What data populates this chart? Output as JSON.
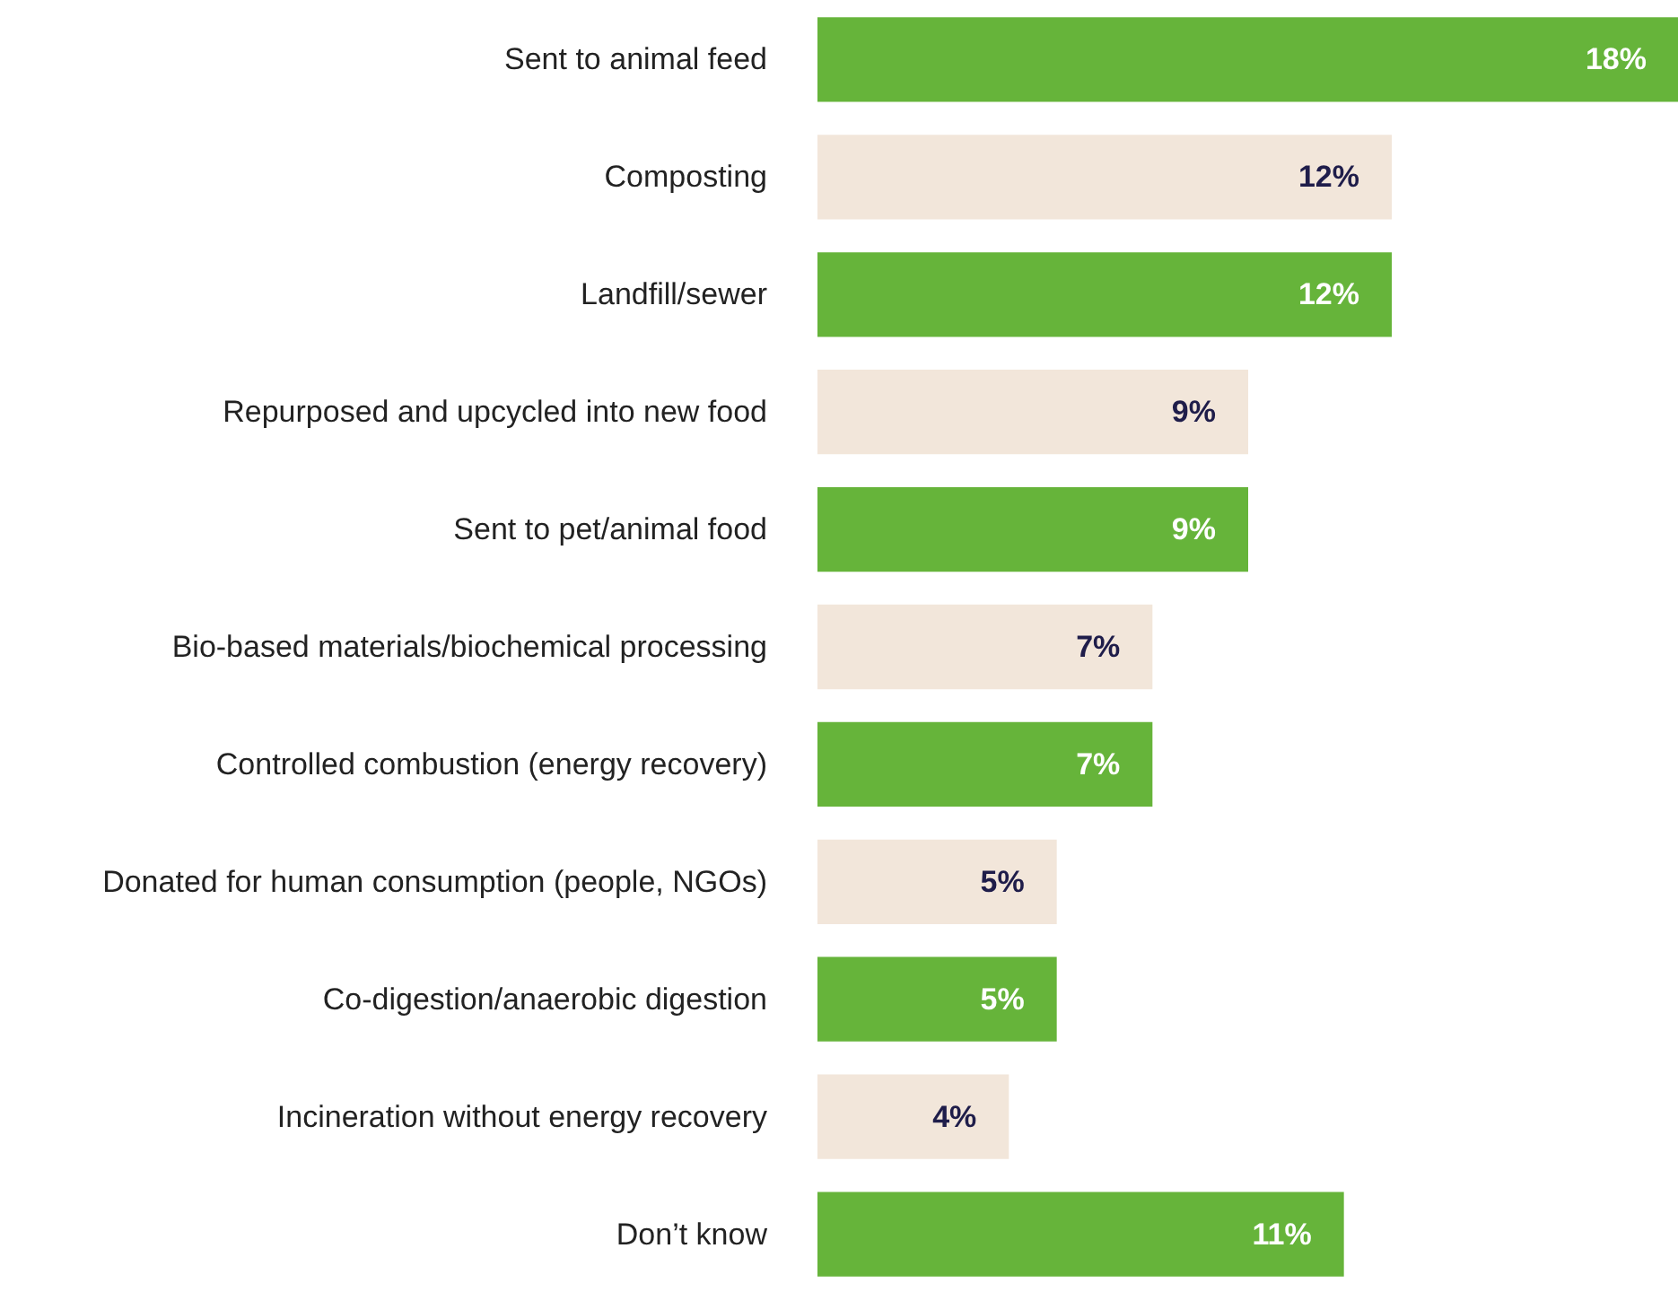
{
  "chart_data": {
    "type": "bar",
    "orientation": "horizontal",
    "categories": [
      "Sent to animal feed",
      "Composting",
      "Landfill/sewer",
      "Repurposed and upcycled into new food",
      "Sent to pet/animal food",
      "Bio-based materials/biochemical processing",
      "Controlled combustion (energy recovery)",
      "Donated for human consumption (people, NGOs)",
      "Co-digestion/anaerobic digestion",
      "Incineration without energy recovery",
      "Don’t know"
    ],
    "values": [
      18,
      12,
      12,
      9,
      9,
      7,
      7,
      5,
      5,
      4,
      11
    ],
    "value_labels": [
      "18%",
      "12%",
      "12%",
      "9%",
      "9%",
      "7%",
      "7%",
      "5%",
      "5%",
      "4%",
      "11%"
    ],
    "colors": [
      "#66b43a",
      "#f2e6da",
      "#66b43a",
      "#f2e6da",
      "#66b43a",
      "#f2e6da",
      "#66b43a",
      "#f2e6da",
      "#66b43a",
      "#f2e6da",
      "#66b43a"
    ]
  }
}
